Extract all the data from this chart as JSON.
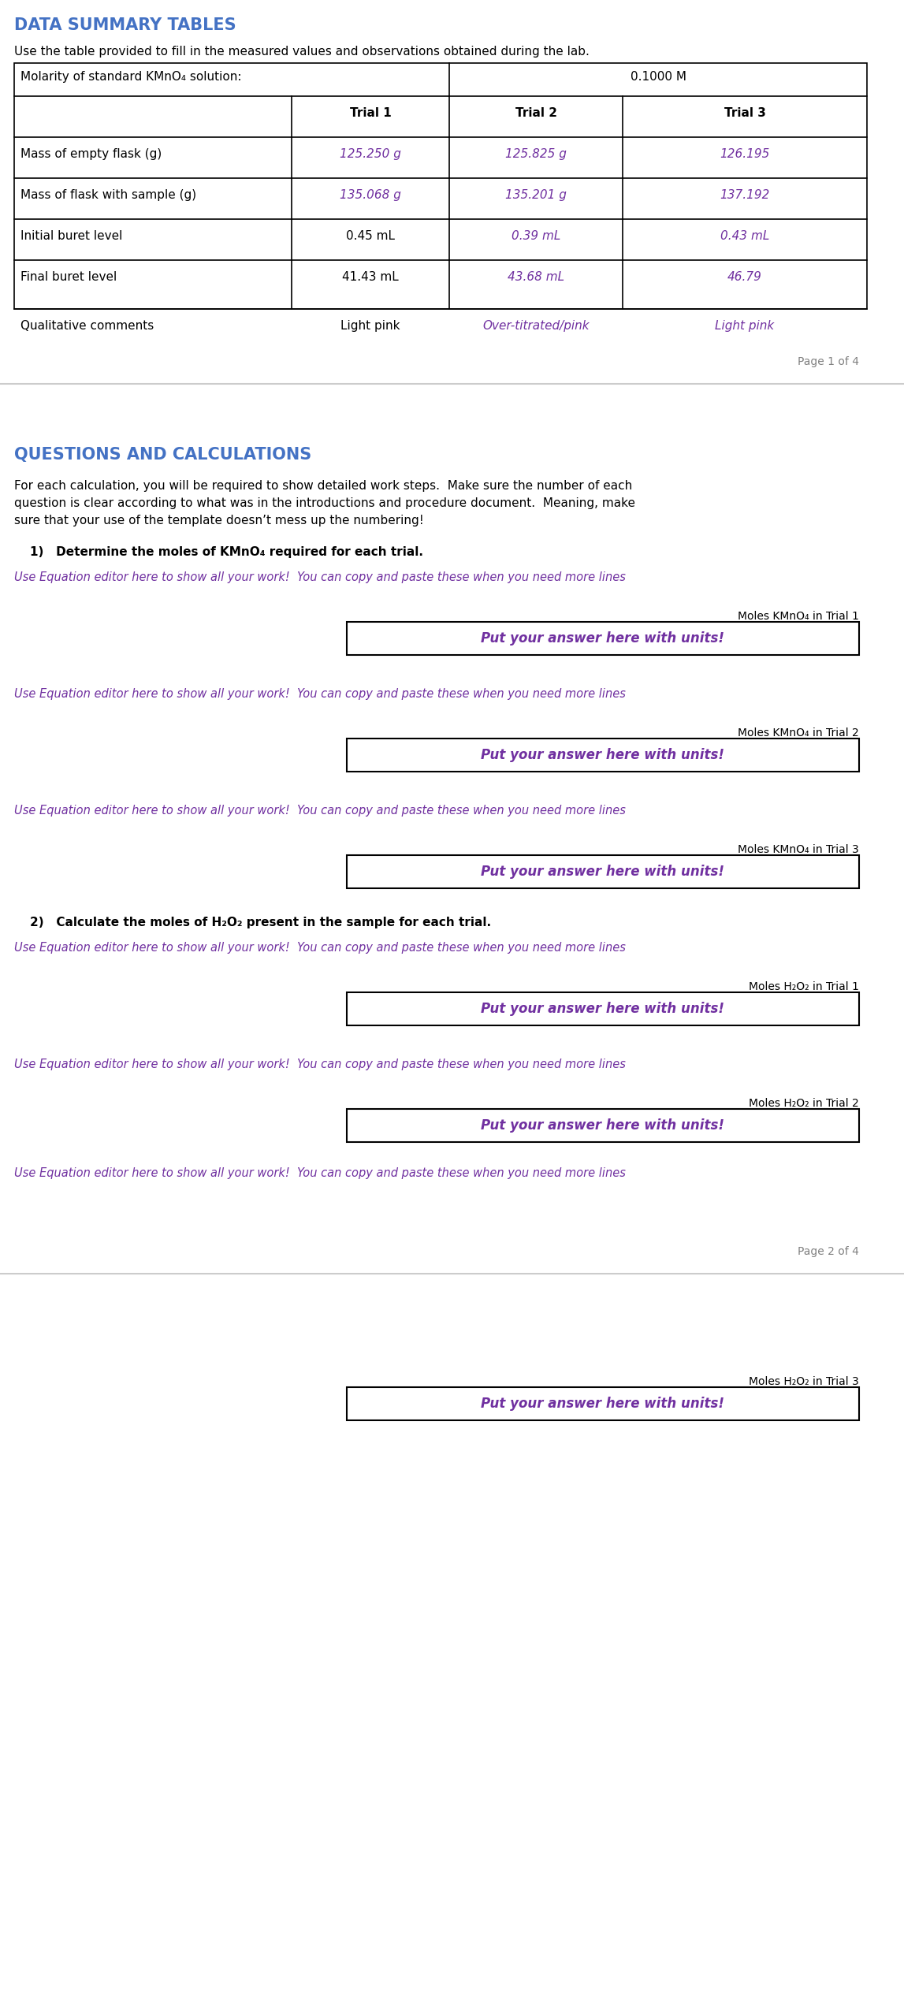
{
  "page1_title": "DATA SUMMARY TABLES",
  "page1_subtitle": "Use the table provided to fill in the measured values and observations obtained during the lab.",
  "molarity_label": "Molarity of standard KMnO₄ solution:",
  "molarity_value": "0.1000 M",
  "table_headers": [
    "",
    "Trial 1",
    "Trial 2",
    "Trial 3"
  ],
  "table_rows": [
    [
      "Mass of empty flask (g)",
      "125.250 g",
      "125.825 g",
      "126.195"
    ],
    [
      "Mass of flask with sample (g)",
      "135.068 g",
      "135.201 g",
      "137.192"
    ],
    [
      "Initial buret level",
      "0.45 mL",
      "0.39 mL",
      "0.43 mL"
    ],
    [
      "Final buret level",
      "41.43 mL",
      "43.68 mL",
      "46.79"
    ],
    [
      "Qualitative comments",
      "Light pink",
      "Over-titrated/pink",
      "Light pink"
    ]
  ],
  "page_footer_1": "Page 1 of 4",
  "page2_title": "QUESTIONS AND CALCULATIONS",
  "page2_intro": "For each calculation, you will be required to show detailed work steps.  Make sure the number of each\nquestion is clear according to what was in the introductions and procedure document.  Meaning, make\nsure that your use of the template doesn’t mess up the numbering!",
  "q1_text": "1)   Determine the moles of KMnO₄ required for each trial.",
  "eq_editor_text": "Use Equation editor here to show all your work!  You can copy and paste these when you need more lines",
  "answer_box_text": "Put your answer here with units!",
  "moles_kmno4_trial1": "Moles KMnO₄ in Trial 1",
  "moles_kmno4_trial2": "Moles KMnO₄ in Trial 2",
  "moles_kmno4_trial3": "Moles KMnO₄ in Trial 3",
  "q2_text": "2)   Calculate the moles of H₂O₂ present in the sample for each trial.",
  "moles_h2o2_trial1": "Moles H₂O₂ in Trial 1",
  "moles_h2o2_trial2": "Moles H₂O₂ in Trial 2",
  "moles_h2o2_trial3": "Moles H₂O₂ in Trial 3",
  "page_footer_2": "Page 2 of 4",
  "title_color": "#4472C4",
  "purple_color": "#7030A0",
  "black_color": "#000000",
  "gray_color": "#808080",
  "bg_color": "#FFFFFF",
  "table_border_color": "#000000",
  "data_color_trial1_row1": "#000000",
  "data_color_trial2_row1": "#7030A0",
  "data_color_trial3_row1": "#7030A0"
}
